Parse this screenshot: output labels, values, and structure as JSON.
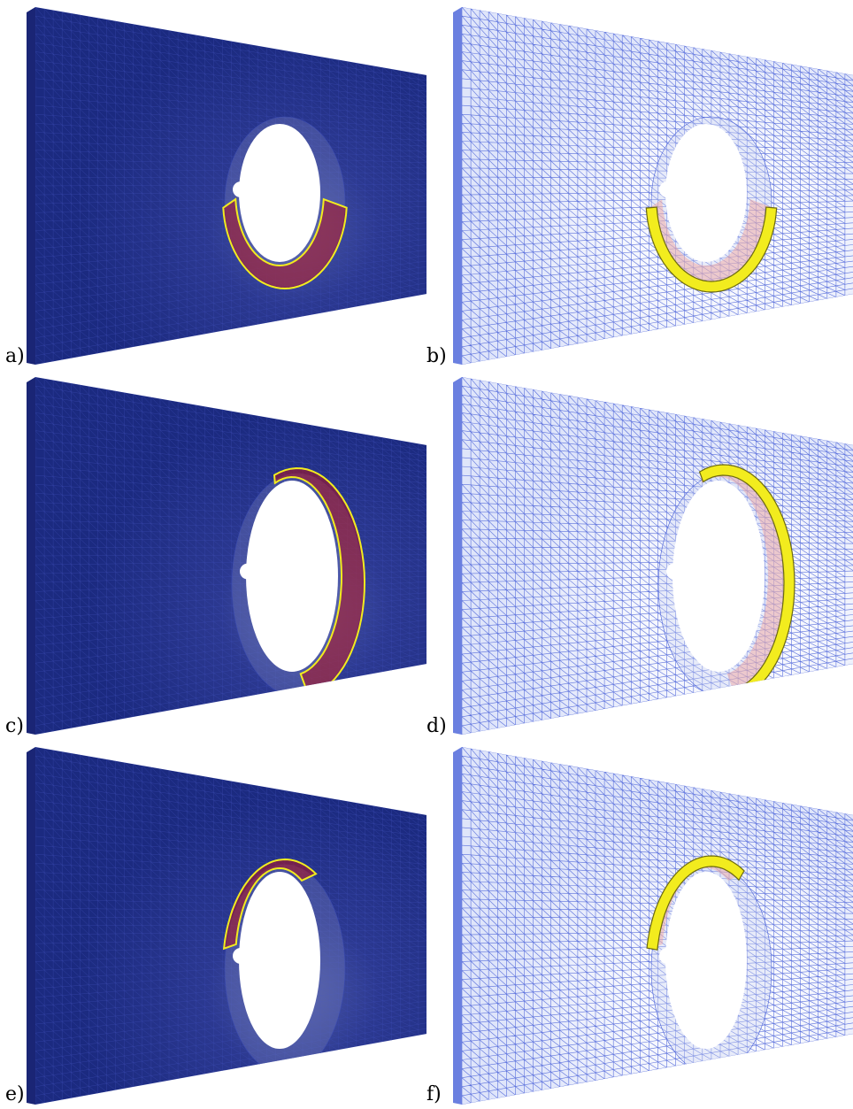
{
  "figure": {
    "panels": [
      {
        "id": "a",
        "label": "a)",
        "style": "solid",
        "ring_start_deg": 5,
        "ring_end_deg": 175,
        "ring_color": "yellow-outline"
      },
      {
        "id": "b",
        "label": "b)",
        "style": "wireframe",
        "ring_start_deg": 5,
        "ring_end_deg": 175,
        "ring_color": "yellow-fill"
      },
      {
        "id": "c",
        "label": "c)",
        "style": "solid",
        "ring_start_deg": -110,
        "ring_end_deg": 80,
        "ring_color": "yellow-outline"
      },
      {
        "id": "d",
        "label": "d)",
        "style": "wireframe",
        "ring_start_deg": -110,
        "ring_end_deg": 80,
        "ring_color": "yellow-fill"
      },
      {
        "id": "e",
        "label": "e)",
        "style": "solid",
        "ring_start_deg": -170,
        "ring_end_deg": -60,
        "ring_color": "yellow-outline"
      },
      {
        "id": "f",
        "label": "f)",
        "style": "wireframe",
        "ring_start_deg": -170,
        "ring_end_deg": -60,
        "ring_color": "yellow-fill"
      }
    ],
    "colors": {
      "solid_plate": "#1b2a80",
      "solid_mesh_line": "#3b4bb0",
      "wire_line": "#4a62d8",
      "wire_bg": "#ffffff",
      "damage_red": "#b4121b",
      "damage_yellow": "#f2ec1e",
      "damage_yellow_dark": "#6d6a10"
    }
  }
}
